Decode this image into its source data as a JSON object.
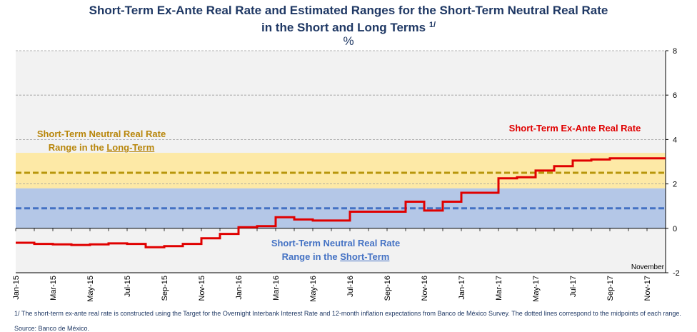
{
  "title_line1": "Short-Term Ex-Ante Real Rate and Estimated Ranges for the Short-Term Neutral Real Rate",
  "title_line2": "in the Short and Long Terms",
  "title_sup": "1/",
  "unit": "%",
  "longterm_label_line1": "Short-Term Neutral Real Rate",
  "longterm_label_pre": "Range in the ",
  "longterm_label_em": "Long-Term",
  "shortterm_label_line1": "Short-Term Neutral Real Rate",
  "shortterm_label_pre": "Range in the ",
  "shortterm_label_em": "Short-Term",
  "rate_label": "Short-Term Ex-Ante Real Rate",
  "month_note": "November",
  "footnote": "1/ The short-term ex-ante real rate is constructed using the Target for the Overnight Interbank Interest Rate and 12-month inflation expectations from Banco de México Survey. The dotted lines correspond to the midpoints of each range.",
  "source": "Source: Banco de México.",
  "chart_data": {
    "type": "line",
    "ylim": [
      -2,
      8
    ],
    "yticks": [
      -2,
      0,
      2,
      4,
      6,
      8
    ],
    "grid": true,
    "colors": {
      "rate": "#e00000",
      "longterm_band": "#fde9a6",
      "shortterm_band": "#b4c7e7",
      "longterm_mid": "#b8960b",
      "shortterm_mid": "#4472c4"
    },
    "ranges": [
      {
        "name": "Long-Term",
        "low": 1.8,
        "high": 3.4,
        "midpoint": 2.5
      },
      {
        "name": "Short-Term",
        "low": 0.0,
        "high": 1.8,
        "midpoint": 0.9
      }
    ],
    "xtick_labels": [
      "Jan-15",
      "Mar-15",
      "May-15",
      "Jul-15",
      "Sep-15",
      "Nov-15",
      "Jan-16",
      "Mar-16",
      "May-16",
      "Jul-16",
      "Sep-16",
      "Nov-16",
      "Jan-17",
      "Mar-17",
      "May-17",
      "Jul-17",
      "Sep-17",
      "Nov-17"
    ],
    "series": [
      {
        "name": "Short-Term Ex-Ante Real Rate",
        "x": [
          "Jan-15",
          "Feb-15",
          "Mar-15",
          "Apr-15",
          "May-15",
          "Jun-15",
          "Jul-15",
          "Aug-15",
          "Sep-15",
          "Oct-15",
          "Nov-15",
          "Dec-15",
          "Jan-16",
          "Feb-16",
          "Mar-16",
          "Apr-16",
          "May-16",
          "Jun-16",
          "Jul-16",
          "Aug-16",
          "Sep-16",
          "Oct-16",
          "Nov-16",
          "Dec-16",
          "Jan-17",
          "Feb-17",
          "Mar-17",
          "Apr-17",
          "May-17",
          "Jun-17",
          "Jul-17",
          "Aug-17",
          "Sep-17",
          "Oct-17",
          "Nov-17"
        ],
        "values": [
          -0.65,
          -0.7,
          -0.72,
          -0.75,
          -0.72,
          -0.68,
          -0.7,
          -0.85,
          -0.8,
          -0.7,
          -0.45,
          -0.25,
          0.05,
          0.1,
          0.5,
          0.4,
          0.35,
          0.35,
          0.75,
          0.75,
          0.75,
          1.2,
          0.8,
          1.2,
          1.6,
          1.6,
          2.25,
          2.3,
          2.6,
          2.8,
          3.05,
          3.1,
          3.15,
          3.15,
          3.15
        ]
      }
    ]
  }
}
